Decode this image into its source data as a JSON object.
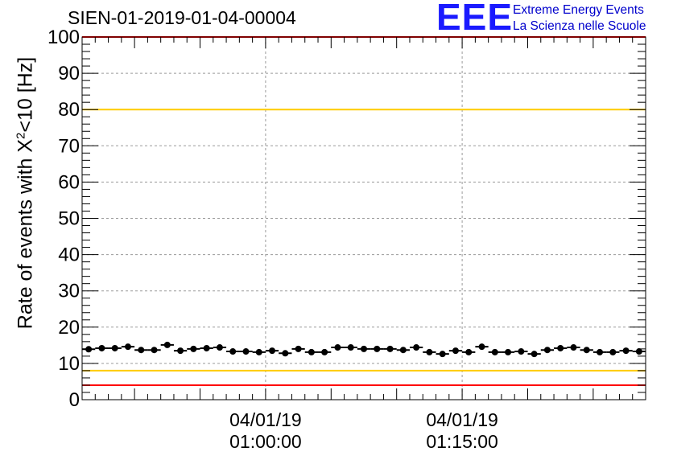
{
  "header": {
    "run_title": "SIEN-01-2019-01-04-00004",
    "logo_text": "EEE",
    "logo_line1": "Extreme Energy Events",
    "logo_line2": "La Scienza nelle Scuole"
  },
  "chart_data": {
    "type": "scatter",
    "ylabel_prefix": "Rate of events with X",
    "ylabel_sup": "2",
    "ylabel_suffix": "<10 [Hz]",
    "ylim": [
      0,
      100
    ],
    "yticks": [
      0,
      10,
      20,
      30,
      40,
      50,
      60,
      70,
      80,
      90,
      100
    ],
    "x_range_minutes": [
      46,
      89
    ],
    "xticks": [
      {
        "minute": 60,
        "date": "04/01/19",
        "time": "01:00:00"
      },
      {
        "minute": 75,
        "date": "04/01/19",
        "time": "01:15:00"
      }
    ],
    "grid": true,
    "reference_lines": [
      {
        "value": 100,
        "color": "#ff0000"
      },
      {
        "value": 80,
        "color": "#ffcc00"
      },
      {
        "value": 8,
        "color": "#ffcc00"
      },
      {
        "value": 4,
        "color": "#ff0000"
      }
    ],
    "series": [
      {
        "marker_color": "#000000",
        "x_minutes": [
          46.5,
          47.5,
          48.5,
          49.5,
          50.5,
          51.5,
          52.5,
          53.5,
          54.5,
          55.5,
          56.5,
          57.5,
          58.5,
          59.5,
          60.5,
          61.5,
          62.5,
          63.5,
          64.5,
          65.5,
          66.5,
          67.5,
          68.5,
          69.5,
          70.5,
          71.5,
          72.5,
          73.5,
          74.5,
          75.5,
          76.5,
          77.5,
          78.5,
          79.5,
          80.5,
          81.5,
          82.5,
          83.5,
          84.5,
          85.5,
          86.5,
          87.5,
          88.5
        ],
        "y": [
          13.9,
          14.2,
          14.2,
          14.6,
          13.7,
          13.7,
          15.1,
          13.5,
          14.0,
          14.2,
          14.4,
          13.3,
          13.3,
          13.1,
          13.5,
          12.8,
          14.0,
          13.1,
          13.1,
          14.4,
          14.4,
          14.0,
          14.0,
          14.0,
          13.7,
          14.4,
          13.1,
          12.6,
          13.5,
          13.1,
          14.6,
          13.1,
          13.1,
          13.3,
          12.6,
          13.7,
          14.2,
          14.4,
          13.7,
          13.1,
          13.1,
          13.5,
          13.3
        ],
        "err": [
          0.5,
          0.5,
          0.5,
          0.5,
          0.5,
          0.5,
          0.5,
          0.5,
          0.5,
          0.5,
          0.5,
          0.5,
          0.5,
          0.5,
          0.5,
          0.5,
          0.5,
          0.5,
          0.5,
          0.5,
          0.5,
          0.5,
          0.5,
          0.5,
          0.5,
          0.5,
          0.5,
          0.5,
          0.5,
          0.5,
          0.5,
          0.5,
          0.5,
          0.5,
          0.5,
          0.5,
          0.5,
          0.5,
          0.5,
          0.5,
          0.5,
          0.5,
          0.5
        ]
      }
    ]
  }
}
